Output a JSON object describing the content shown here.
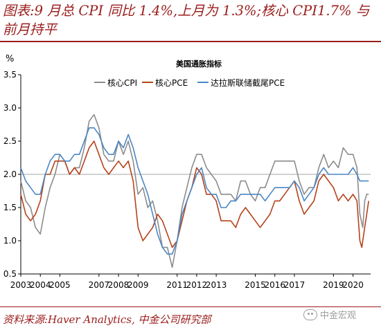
{
  "header": {
    "title": "图表:9 月总 CPI 同比 1.4%,上月为 1.3%;核心 CPI1.7% 与前月持平"
  },
  "footer": {
    "source": "资料来源:Haver Analytics, 中金公司研究部",
    "watermark": "中金宏观"
  },
  "chart_data": {
    "type": "line",
    "title": "美国通胀指标",
    "ylabel": "%",
    "ylim": [
      0.5,
      3.5
    ],
    "yticks": [
      "0.5",
      "1.0",
      "1.5",
      "2.0",
      "2.5",
      "3.0",
      "3.5"
    ],
    "xlim": [
      2003,
      2020.9
    ],
    "xticks": [
      "2003",
      "2004",
      "2005",
      "2007",
      "2008",
      "2009",
      "2011",
      "2012",
      "2013",
      "2015",
      "2016",
      "2017",
      "2019",
      "2020"
    ],
    "xtick_positions": [
      2003,
      2004,
      2005,
      2007,
      2008,
      2009,
      2011,
      2012,
      2013,
      2015,
      2016,
      2017,
      2019,
      2020
    ],
    "reference_line": 2.0,
    "grid": false,
    "legend_position": "top",
    "series": [
      {
        "name": "核心CPI",
        "color": "#8c8c8c",
        "points": [
          [
            2003.0,
            1.9
          ],
          [
            2003.25,
            1.6
          ],
          [
            2003.5,
            1.5
          ],
          [
            2003.75,
            1.2
          ],
          [
            2004.0,
            1.1
          ],
          [
            2004.25,
            1.5
          ],
          [
            2004.5,
            1.8
          ],
          [
            2004.75,
            2.0
          ],
          [
            2005.0,
            2.3
          ],
          [
            2005.25,
            2.2
          ],
          [
            2005.5,
            2.0
          ],
          [
            2005.75,
            2.1
          ],
          [
            2006.0,
            2.1
          ],
          [
            2006.25,
            2.4
          ],
          [
            2006.5,
            2.8
          ],
          [
            2006.75,
            2.9
          ],
          [
            2007.0,
            2.7
          ],
          [
            2007.25,
            2.3
          ],
          [
            2007.5,
            2.2
          ],
          [
            2007.75,
            2.2
          ],
          [
            2008.0,
            2.5
          ],
          [
            2008.25,
            2.3
          ],
          [
            2008.5,
            2.5
          ],
          [
            2008.75,
            2.2
          ],
          [
            2009.0,
            1.7
          ],
          [
            2009.25,
            1.8
          ],
          [
            2009.5,
            1.5
          ],
          [
            2009.75,
            1.6
          ],
          [
            2010.0,
            1.3
          ],
          [
            2010.25,
            0.9
          ],
          [
            2010.5,
            0.9
          ],
          [
            2010.75,
            0.6
          ],
          [
            2011.0,
            1.0
          ],
          [
            2011.25,
            1.5
          ],
          [
            2011.5,
            1.8
          ],
          [
            2011.75,
            2.1
          ],
          [
            2012.0,
            2.3
          ],
          [
            2012.25,
            2.3
          ],
          [
            2012.5,
            2.1
          ],
          [
            2012.75,
            2.0
          ],
          [
            2013.0,
            1.9
          ],
          [
            2013.25,
            1.7
          ],
          [
            2013.5,
            1.7
          ],
          [
            2013.75,
            1.7
          ],
          [
            2014.0,
            1.6
          ],
          [
            2014.25,
            1.9
          ],
          [
            2014.5,
            1.9
          ],
          [
            2014.75,
            1.7
          ],
          [
            2015.0,
            1.6
          ],
          [
            2015.25,
            1.8
          ],
          [
            2015.5,
            1.8
          ],
          [
            2015.75,
            2.0
          ],
          [
            2016.0,
            2.2
          ],
          [
            2016.25,
            2.2
          ],
          [
            2016.5,
            2.2
          ],
          [
            2016.75,
            2.2
          ],
          [
            2017.0,
            2.2
          ],
          [
            2017.25,
            1.9
          ],
          [
            2017.5,
            1.7
          ],
          [
            2017.75,
            1.8
          ],
          [
            2018.0,
            1.8
          ],
          [
            2018.25,
            2.1
          ],
          [
            2018.5,
            2.3
          ],
          [
            2018.75,
            2.1
          ],
          [
            2019.0,
            2.2
          ],
          [
            2019.25,
            2.1
          ],
          [
            2019.5,
            2.4
          ],
          [
            2019.75,
            2.3
          ],
          [
            2020.0,
            2.3
          ],
          [
            2020.2,
            2.1
          ],
          [
            2020.35,
            1.4
          ],
          [
            2020.5,
            1.2
          ],
          [
            2020.6,
            1.6
          ],
          [
            2020.7,
            1.7
          ],
          [
            2020.8,
            1.7
          ]
        ]
      },
      {
        "name": "核心PCE",
        "color": "#b5421a",
        "points": [
          [
            2003.0,
            1.7
          ],
          [
            2003.25,
            1.4
          ],
          [
            2003.5,
            1.3
          ],
          [
            2003.75,
            1.4
          ],
          [
            2004.0,
            1.6
          ],
          [
            2004.25,
            2.0
          ],
          [
            2004.5,
            2.0
          ],
          [
            2004.75,
            2.2
          ],
          [
            2005.0,
            2.2
          ],
          [
            2005.25,
            2.2
          ],
          [
            2005.5,
            2.0
          ],
          [
            2005.75,
            2.1
          ],
          [
            2006.0,
            2.0
          ],
          [
            2006.25,
            2.2
          ],
          [
            2006.5,
            2.4
          ],
          [
            2006.75,
            2.5
          ],
          [
            2007.0,
            2.3
          ],
          [
            2007.25,
            2.1
          ],
          [
            2007.5,
            2.0
          ],
          [
            2007.75,
            2.1
          ],
          [
            2008.0,
            2.2
          ],
          [
            2008.25,
            2.1
          ],
          [
            2008.5,
            2.2
          ],
          [
            2008.75,
            1.9
          ],
          [
            2009.0,
            1.2
          ],
          [
            2009.25,
            1.0
          ],
          [
            2009.5,
            1.1
          ],
          [
            2009.75,
            1.2
          ],
          [
            2010.0,
            1.4
          ],
          [
            2010.25,
            1.3
          ],
          [
            2010.5,
            1.1
          ],
          [
            2010.75,
            0.9
          ],
          [
            2011.0,
            1.0
          ],
          [
            2011.25,
            1.3
          ],
          [
            2011.5,
            1.6
          ],
          [
            2011.75,
            1.8
          ],
          [
            2012.0,
            2.1
          ],
          [
            2012.25,
            2.0
          ],
          [
            2012.5,
            1.7
          ],
          [
            2012.75,
            1.7
          ],
          [
            2013.0,
            1.6
          ],
          [
            2013.25,
            1.3
          ],
          [
            2013.5,
            1.3
          ],
          [
            2013.75,
            1.3
          ],
          [
            2014.0,
            1.2
          ],
          [
            2014.25,
            1.4
          ],
          [
            2014.5,
            1.5
          ],
          [
            2014.75,
            1.4
          ],
          [
            2015.0,
            1.3
          ],
          [
            2015.25,
            1.2
          ],
          [
            2015.5,
            1.3
          ],
          [
            2015.75,
            1.4
          ],
          [
            2016.0,
            1.6
          ],
          [
            2016.25,
            1.6
          ],
          [
            2016.5,
            1.7
          ],
          [
            2016.75,
            1.8
          ],
          [
            2017.0,
            1.9
          ],
          [
            2017.25,
            1.6
          ],
          [
            2017.5,
            1.4
          ],
          [
            2017.75,
            1.5
          ],
          [
            2018.0,
            1.6
          ],
          [
            2018.25,
            1.9
          ],
          [
            2018.5,
            2.0
          ],
          [
            2018.75,
            1.9
          ],
          [
            2019.0,
            1.8
          ],
          [
            2019.25,
            1.6
          ],
          [
            2019.5,
            1.7
          ],
          [
            2019.75,
            1.6
          ],
          [
            2020.0,
            1.7
          ],
          [
            2020.2,
            1.6
          ],
          [
            2020.35,
            1.0
          ],
          [
            2020.45,
            0.9
          ],
          [
            2020.6,
            1.2
          ],
          [
            2020.7,
            1.4
          ],
          [
            2020.8,
            1.6
          ]
        ]
      },
      {
        "name": "达拉斯联储截尾PCE",
        "color": "#4a86c5",
        "points": [
          [
            2003.0,
            2.1
          ],
          [
            2003.25,
            1.9
          ],
          [
            2003.5,
            1.8
          ],
          [
            2003.75,
            1.7
          ],
          [
            2004.0,
            1.7
          ],
          [
            2004.25,
            2.0
          ],
          [
            2004.5,
            2.2
          ],
          [
            2004.75,
            2.3
          ],
          [
            2005.0,
            2.3
          ],
          [
            2005.25,
            2.2
          ],
          [
            2005.5,
            2.2
          ],
          [
            2005.75,
            2.3
          ],
          [
            2006.0,
            2.3
          ],
          [
            2006.25,
            2.5
          ],
          [
            2006.5,
            2.7
          ],
          [
            2006.75,
            2.7
          ],
          [
            2007.0,
            2.6
          ],
          [
            2007.25,
            2.4
          ],
          [
            2007.5,
            2.3
          ],
          [
            2007.75,
            2.3
          ],
          [
            2008.0,
            2.5
          ],
          [
            2008.25,
            2.4
          ],
          [
            2008.5,
            2.6
          ],
          [
            2008.75,
            2.4
          ],
          [
            2009.0,
            2.1
          ],
          [
            2009.25,
            1.9
          ],
          [
            2009.5,
            1.7
          ],
          [
            2009.75,
            1.4
          ],
          [
            2010.0,
            1.1
          ],
          [
            2010.25,
            0.9
          ],
          [
            2010.5,
            0.8
          ],
          [
            2010.75,
            0.8
          ],
          [
            2011.0,
            1.0
          ],
          [
            2011.25,
            1.4
          ],
          [
            2011.5,
            1.6
          ],
          [
            2011.75,
            1.8
          ],
          [
            2012.0,
            2.0
          ],
          [
            2012.25,
            2.1
          ],
          [
            2012.5,
            1.8
          ],
          [
            2012.75,
            1.7
          ],
          [
            2013.0,
            1.7
          ],
          [
            2013.25,
            1.5
          ],
          [
            2013.5,
            1.5
          ],
          [
            2013.75,
            1.6
          ],
          [
            2014.0,
            1.6
          ],
          [
            2014.25,
            1.7
          ],
          [
            2014.5,
            1.7
          ],
          [
            2014.75,
            1.7
          ],
          [
            2015.0,
            1.7
          ],
          [
            2015.25,
            1.7
          ],
          [
            2015.5,
            1.6
          ],
          [
            2015.75,
            1.7
          ],
          [
            2016.0,
            1.8
          ],
          [
            2016.25,
            1.8
          ],
          [
            2016.5,
            1.8
          ],
          [
            2016.75,
            1.8
          ],
          [
            2017.0,
            1.9
          ],
          [
            2017.25,
            1.8
          ],
          [
            2017.5,
            1.6
          ],
          [
            2017.75,
            1.7
          ],
          [
            2018.0,
            1.8
          ],
          [
            2018.25,
            2.0
          ],
          [
            2018.5,
            2.1
          ],
          [
            2018.75,
            2.0
          ],
          [
            2019.0,
            2.0
          ],
          [
            2019.25,
            2.0
          ],
          [
            2019.5,
            2.0
          ],
          [
            2019.75,
            2.0
          ],
          [
            2020.0,
            2.1
          ],
          [
            2020.2,
            2.0
          ],
          [
            2020.35,
            1.9
          ],
          [
            2020.5,
            1.9
          ],
          [
            2020.6,
            1.9
          ],
          [
            2020.7,
            1.9
          ],
          [
            2020.8,
            1.9
          ]
        ]
      }
    ]
  }
}
